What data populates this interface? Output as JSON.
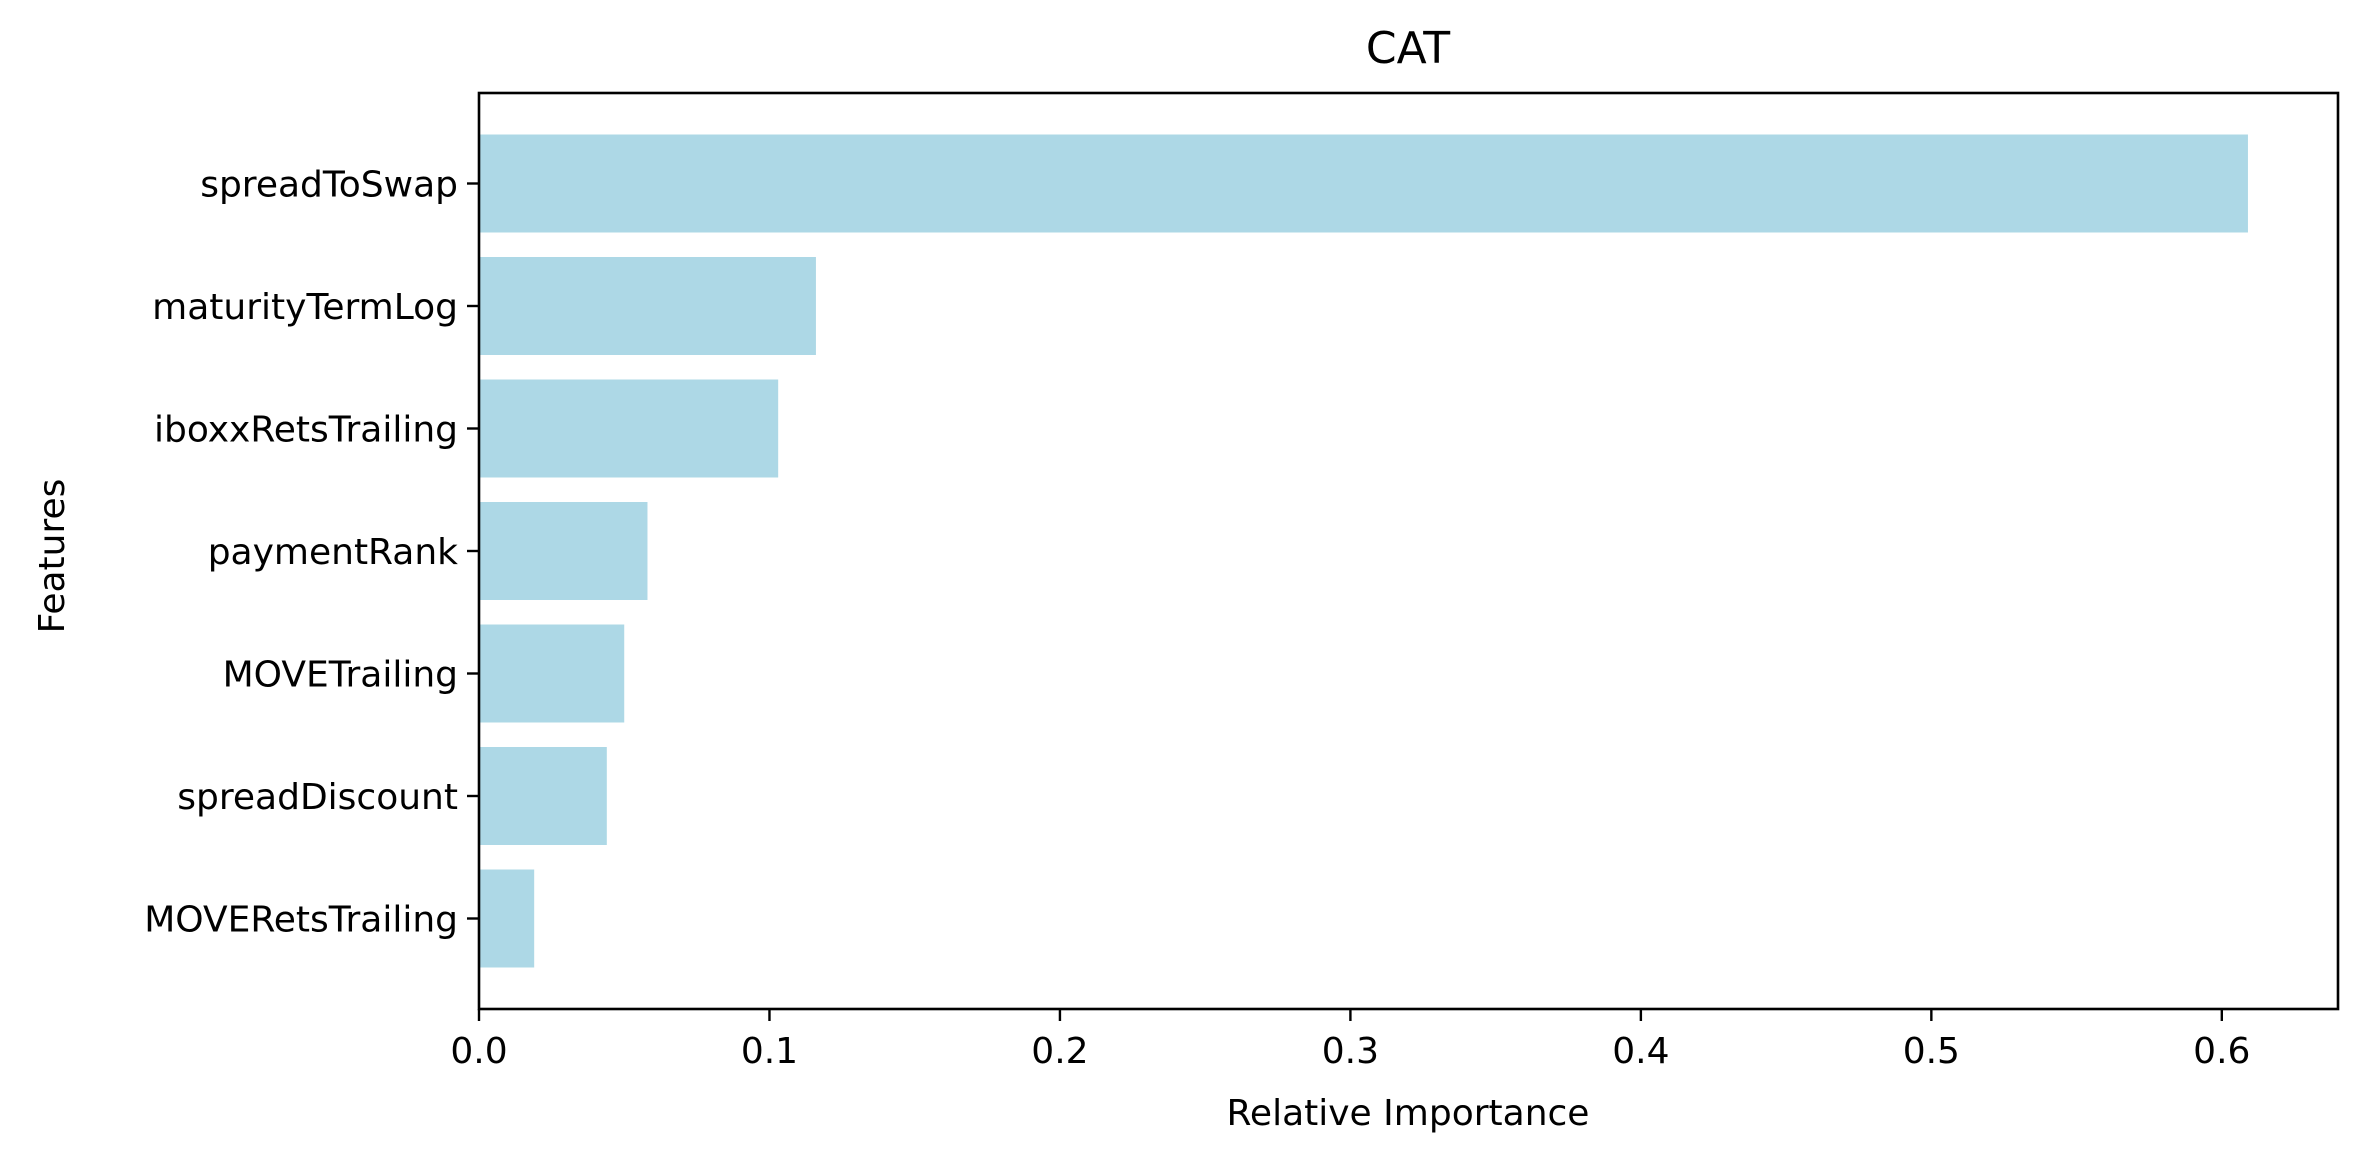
{
  "chart_data": {
    "type": "bar",
    "orientation": "horizontal",
    "title": "CAT",
    "xlabel": "Relative Importance",
    "ylabel": "Features",
    "categories": [
      "spreadToSwap",
      "maturityTermLog",
      "iboxxRetsTrailing",
      "paymentRank",
      "MOVETrailing",
      "spreadDiscount",
      "MOVERetsTrailing"
    ],
    "values": [
      0.609,
      0.116,
      0.103,
      0.058,
      0.05,
      0.044,
      0.019
    ],
    "xlim": [
      0.0,
      0.64
    ],
    "xticks": [
      0.0,
      0.1,
      0.2,
      0.3,
      0.4,
      0.5,
      0.6
    ],
    "xtick_labels": [
      "0.0",
      "0.1",
      "0.2",
      "0.3",
      "0.4",
      "0.5",
      "0.6"
    ],
    "bar_color": "#add8e6",
    "grid": false,
    "legend": "none"
  }
}
